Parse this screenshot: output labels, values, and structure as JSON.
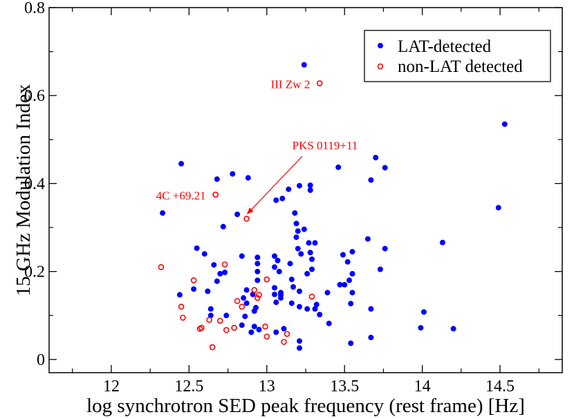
{
  "chart_data": {
    "type": "scatter",
    "xlabel": "log synchrotron SED peak frequency (rest frame) [Hz]",
    "ylabel": "15 GHz Modulation Index",
    "xlim": [
      11.6,
      14.9
    ],
    "ylim": [
      -0.03,
      0.8
    ],
    "xticks": [
      "12",
      "12.5",
      "13",
      "13.5",
      "14",
      "14.5"
    ],
    "yticks": [
      "0",
      "0.2",
      "0.4",
      "0.6",
      "0.8"
    ],
    "grid": false,
    "legend_position": "top-right",
    "series": [
      {
        "name": "LAT-detected",
        "marker": "filled-circle",
        "color": "#0000ff",
        "points": [
          [
            13.24,
            0.67
          ],
          [
            14.53,
            0.535
          ],
          [
            14.49,
            0.345
          ],
          [
            12.45,
            0.445
          ],
          [
            12.33,
            0.333
          ],
          [
            12.68,
            0.41
          ],
          [
            12.78,
            0.422
          ],
          [
            12.88,
            0.413
          ],
          [
            12.72,
            0.302
          ],
          [
            12.81,
            0.33
          ],
          [
            13.06,
            0.362
          ],
          [
            13.1,
            0.366
          ],
          [
            13.14,
            0.387
          ],
          [
            13.21,
            0.395
          ],
          [
            13.28,
            0.396
          ],
          [
            13.28,
            0.385
          ],
          [
            13.46,
            0.437
          ],
          [
            13.7,
            0.459
          ],
          [
            13.76,
            0.436
          ],
          [
            13.67,
            0.408
          ],
          [
            13.18,
            0.333
          ],
          [
            13.19,
            0.309
          ],
          [
            13.24,
            0.296
          ],
          [
            13.2,
            0.292
          ],
          [
            13.27,
            0.265
          ],
          [
            13.31,
            0.265
          ],
          [
            13.19,
            0.278
          ],
          [
            13.2,
            0.252
          ],
          [
            13.22,
            0.24
          ],
          [
            13.28,
            0.243
          ],
          [
            13.29,
            0.228
          ],
          [
            13.29,
            0.205
          ],
          [
            13.26,
            0.195
          ],
          [
            13.49,
            0.238
          ],
          [
            13.52,
            0.222
          ],
          [
            13.55,
            0.245
          ],
          [
            13.65,
            0.274
          ],
          [
            13.76,
            0.252
          ],
          [
            14.13,
            0.266
          ],
          [
            13.73,
            0.205
          ],
          [
            13.55,
            0.195
          ],
          [
            13.53,
            0.18
          ],
          [
            13.5,
            0.17
          ],
          [
            13.47,
            0.17
          ],
          [
            13.55,
            0.152
          ],
          [
            13.54,
            0.127
          ],
          [
            13.39,
            0.152
          ],
          [
            13.32,
            0.125
          ],
          [
            13.31,
            0.115
          ],
          [
            13.34,
            0.102
          ],
          [
            13.4,
            0.082
          ],
          [
            13.67,
            0.115
          ],
          [
            14.01,
            0.108
          ],
          [
            13.99,
            0.072
          ],
          [
            14.2,
            0.07
          ],
          [
            13.67,
            0.05
          ],
          [
            13.54,
            0.037
          ],
          [
            13.21,
            0.042
          ],
          [
            13.21,
            0.026
          ],
          [
            12.55,
            0.253
          ],
          [
            12.6,
            0.24
          ],
          [
            12.66,
            0.215
          ],
          [
            12.7,
            0.195
          ],
          [
            12.73,
            0.198
          ],
          [
            12.68,
            0.178
          ],
          [
            12.62,
            0.155
          ],
          [
            12.64,
            0.115
          ],
          [
            12.53,
            0.16
          ],
          [
            12.44,
            0.147
          ],
          [
            12.64,
            0.1
          ],
          [
            12.74,
            0.1
          ],
          [
            12.84,
            0.235
          ],
          [
            12.94,
            0.232
          ],
          [
            12.94,
            0.218
          ],
          [
            12.94,
            0.2
          ],
          [
            12.94,
            0.18
          ],
          [
            13.05,
            0.235
          ],
          [
            13.07,
            0.225
          ],
          [
            13.05,
            0.21
          ],
          [
            13.08,
            0.2
          ],
          [
            13.15,
            0.218
          ],
          [
            13.16,
            0.182
          ],
          [
            13.17,
            0.165
          ],
          [
            13.21,
            0.155
          ],
          [
            13.05,
            0.163
          ],
          [
            13.05,
            0.148
          ],
          [
            13.09,
            0.152
          ],
          [
            13.09,
            0.147
          ],
          [
            13.09,
            0.14
          ],
          [
            13.06,
            0.13
          ],
          [
            13.16,
            0.128
          ],
          [
            12.87,
            0.158
          ],
          [
            12.85,
            0.14
          ],
          [
            12.91,
            0.148
          ],
          [
            12.87,
            0.128
          ],
          [
            12.93,
            0.118
          ],
          [
            12.92,
            0.11
          ],
          [
            12.86,
            0.098
          ],
          [
            12.92,
            0.075
          ],
          [
            12.95,
            0.068
          ],
          [
            12.9,
            0.062
          ],
          [
            12.84,
            0.078
          ],
          [
            13.06,
            0.062
          ],
          [
            13.11,
            0.07
          ],
          [
            13.21,
            0.12
          ],
          [
            13.26,
            0.115
          ]
        ]
      },
      {
        "name": "non-LAT detected",
        "marker": "open-circle",
        "color": "#ff0000",
        "points": [
          [
            13.34,
            0.628
          ],
          [
            12.67,
            0.375
          ],
          [
            12.87,
            0.32
          ],
          [
            12.32,
            0.21
          ],
          [
            12.73,
            0.216
          ],
          [
            12.53,
            0.18
          ],
          [
            12.45,
            0.12
          ],
          [
            12.46,
            0.095
          ],
          [
            12.57,
            0.07
          ],
          [
            12.58,
            0.072
          ],
          [
            12.63,
            0.09
          ],
          [
            12.7,
            0.088
          ],
          [
            12.74,
            0.067
          ],
          [
            12.79,
            0.072
          ],
          [
            12.81,
            0.133
          ],
          [
            12.84,
            0.12
          ],
          [
            12.92,
            0.158
          ],
          [
            12.94,
            0.14
          ],
          [
            12.95,
            0.147
          ],
          [
            13.0,
            0.182
          ],
          [
            12.99,
            0.075
          ],
          [
            13.0,
            0.052
          ],
          [
            13.11,
            0.04
          ],
          [
            13.13,
            0.058
          ],
          [
            13.29,
            0.143
          ],
          [
            12.65,
            0.028
          ]
        ]
      }
    ],
    "annotations": [
      {
        "id": "iiizw2",
        "text": "III Zw 2",
        "x": 13.34,
        "y": 0.628
      },
      {
        "id": "pks0119",
        "text": "PKS 0119+11",
        "x": 12.87,
        "y": 0.32,
        "arrow": true
      },
      {
        "id": "4c6921",
        "text": "4C +69.21",
        "x": 12.67,
        "y": 0.375
      }
    ]
  }
}
